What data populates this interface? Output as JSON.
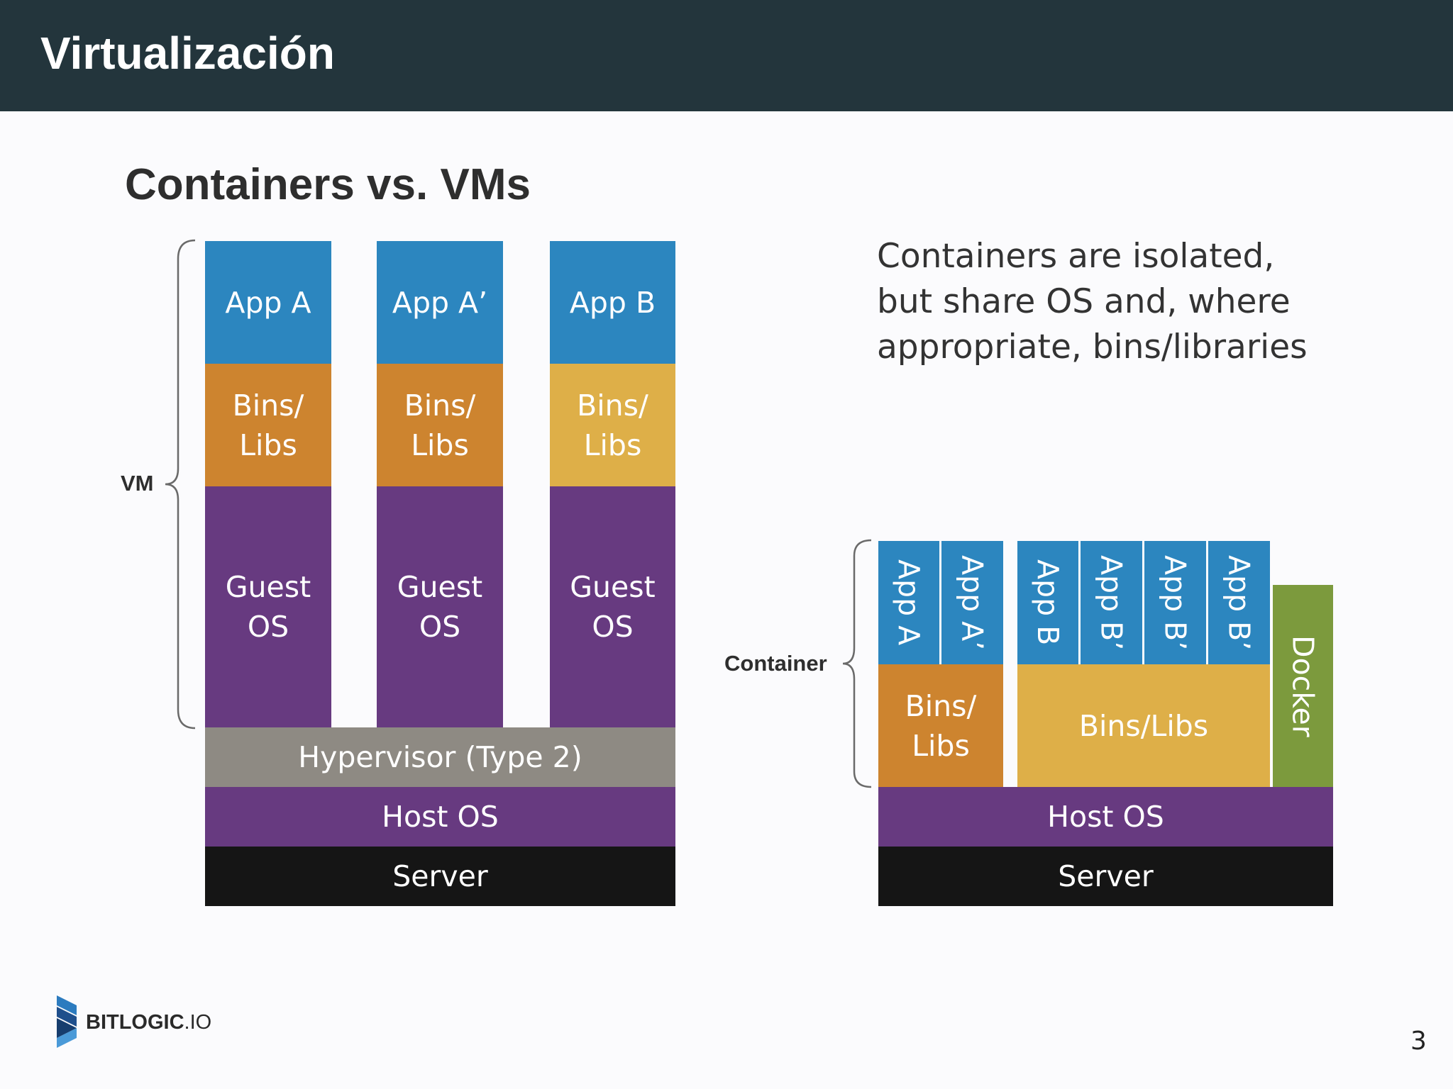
{
  "header": {
    "title": "Virtualización"
  },
  "diagram": {
    "title": "Containers vs. VMs",
    "caption": "Containers are isolated,\nbut share OS and, where\nappropriate, bins/libraries",
    "vm": {
      "label": "VM",
      "columns": [
        {
          "app": "App A",
          "bins": "Bins/\nLibs",
          "guest": "Guest\nOS"
        },
        {
          "app": "App A’",
          "bins": "Bins/\nLibs",
          "guest": "Guest\nOS"
        },
        {
          "app": "App B",
          "bins": "Bins/\nLibs",
          "guest": "Guest\nOS"
        }
      ],
      "hypervisor": "Hypervisor (Type 2)",
      "host_os": "Host OS",
      "server": "Server"
    },
    "container": {
      "label": "Container",
      "apps": [
        "App A",
        "App A’",
        "App B",
        "App B’",
        "App B’",
        "App B’"
      ],
      "bins_a": "Bins/\nLibs",
      "bins_b": "Bins/Libs",
      "docker": "Docker",
      "host_os": "Host OS",
      "server": "Server"
    },
    "colors": {
      "app": "#2c86bf",
      "bins_orange": "#cd842f",
      "bins_yellow": "#deaf48",
      "guest_os": "#673a80",
      "hypervisor": "#8e8a83",
      "server": "#151515",
      "docker": "#7c9a3d"
    }
  },
  "footer": {
    "logo_text": "BITLOGIC",
    "logo_suffix": ".IO",
    "page_number": "3"
  }
}
